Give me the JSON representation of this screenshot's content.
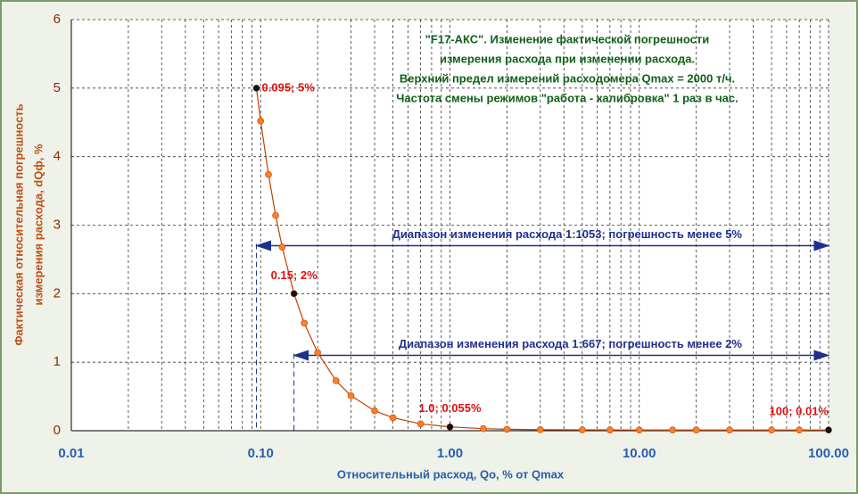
{
  "chart_data": {
    "type": "scatter-line",
    "title_lines": [
      "\"F17-АКС\". Изменение фактической погрешности",
      "измерения расхода при изменении расхода.",
      "Верхний предел измерений расходомера Qmax = 2000 т/ч.",
      "Частота смены режимов \"работа - калибровка\" 1 раз в час."
    ],
    "xlabel": "Относительный расход, Qo, % от Qmax",
    "ylabel_lines": [
      "Фактическая относительная погрешность",
      "измерения расхода, dQф, %"
    ],
    "xscale": "log",
    "xlim": [
      0.01,
      100
    ],
    "ylim": [
      0,
      6
    ],
    "xticks": [
      {
        "value": 0.01,
        "label": "0.01"
      },
      {
        "value": 0.1,
        "label": "0.10"
      },
      {
        "value": 1,
        "label": "1.00"
      },
      {
        "value": 10,
        "label": "10.00"
      },
      {
        "value": 100,
        "label": "100.00"
      }
    ],
    "minor_xticks": [
      0.02,
      0.03,
      0.04,
      0.05,
      0.06,
      0.07,
      0.08,
      0.09,
      0.2,
      0.3,
      0.4,
      0.5,
      0.6,
      0.7,
      0.8,
      0.9,
      2,
      3,
      4,
      5,
      6,
      7,
      8,
      9,
      20,
      30,
      40,
      50,
      60,
      70,
      80,
      90
    ],
    "yticks": [
      0,
      1,
      2,
      3,
      4,
      5,
      6
    ],
    "grid": true,
    "series": [
      {
        "color": "#ff7f27",
        "x": [
          0.095,
          0.1,
          0.11,
          0.12,
          0.13,
          0.15,
          0.17,
          0.2,
          0.25,
          0.3,
          0.4,
          0.5,
          0.7,
          1.0,
          1.5,
          2,
          3,
          5,
          7,
          10,
          15,
          20,
          30,
          50,
          70,
          100
        ],
        "values": [
          5,
          4.52,
          3.74,
          3.14,
          2.68,
          2,
          1.57,
          1.14,
          0.73,
          0.51,
          0.29,
          0.19,
          0.1,
          0.055,
          0.03,
          0.021,
          0.015,
          0.012,
          0.011,
          0.01,
          0.01,
          0.01,
          0.01,
          0.01,
          0.01,
          0.01
        ]
      }
    ],
    "point_labels": [
      {
        "x": 0.095,
        "y": 5,
        "label": "0.095; 5%"
      },
      {
        "x": 0.15,
        "y": 2,
        "label": "0.15; 2%"
      },
      {
        "x": 1.0,
        "y": 0.055,
        "label": "1.0; 0.055%"
      },
      {
        "x": 100,
        "y": 0.01,
        "label": "100; 0.01%"
      }
    ],
    "range_arrows": [
      {
        "label": "Диапазон изменения расхода 1:1053; погрешность менее 5%",
        "x": [
          0.095,
          100
        ],
        "y": 2.7
      },
      {
        "label": "Диапазон изменения расхода 1:667; погрешность менее 2%",
        "x": [
          0.15,
          100
        ],
        "y": 1.1
      }
    ]
  }
}
